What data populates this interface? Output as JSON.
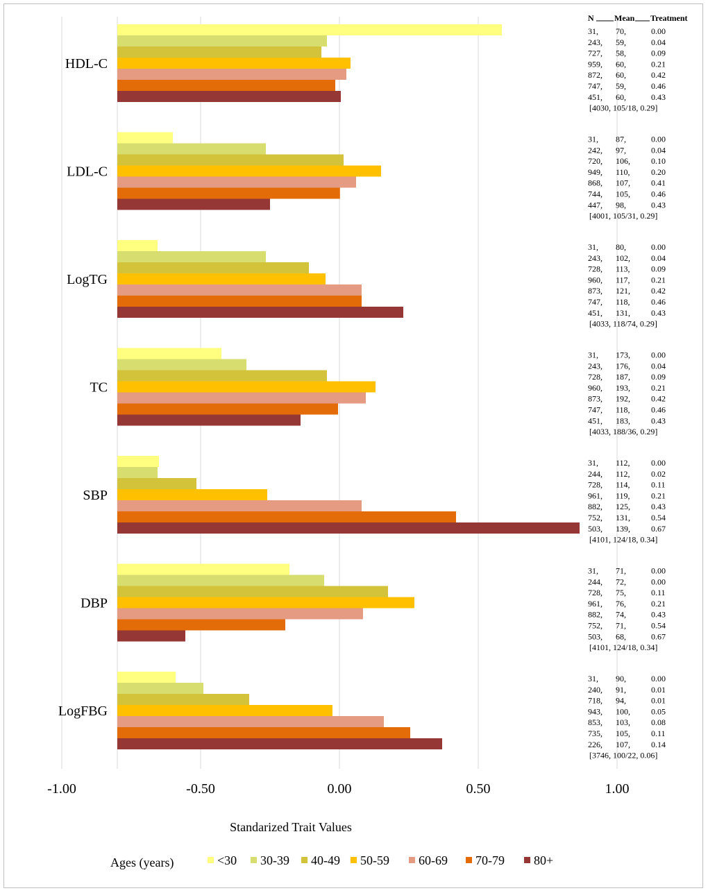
{
  "chart_data": {
    "type": "bar",
    "orientation": "horizontal",
    "xlabel": "Standarized  Trait Values",
    "xlim": [
      -1.0,
      1.0
    ],
    "xticks": [
      "-1.00",
      "-0.50",
      "0.00",
      "0.50",
      "1.00"
    ],
    "xtick_values": [
      -1.0,
      -0.5,
      0.0,
      0.5,
      1.0
    ],
    "legend_title": "Ages  (years)",
    "series": [
      {
        "name": "<30",
        "color": "#FFFF80"
      },
      {
        "name": "30-39",
        "color": "#D7DD6E"
      },
      {
        "name": "40-49",
        "color": "#D3C33B"
      },
      {
        "name": "50-59",
        "color": "#FFC000"
      },
      {
        "name": "60-69",
        "color": "#E59A82"
      },
      {
        "name": "70-79",
        "color": "#E36C09"
      },
      {
        "name": "80+",
        "color": "#953735"
      }
    ],
    "categories": [
      "HDL-C",
      "LDL-C",
      "LogTG",
      "TC",
      "SBP",
      "DBP",
      "LogFBG"
    ],
    "values": [
      [
        0.585,
        -0.045,
        -0.065,
        0.04,
        0.025,
        -0.015,
        0.005
      ],
      [
        -0.6,
        -0.265,
        0.015,
        0.15,
        0.06,
        0.002,
        -0.25
      ],
      [
        -0.655,
        -0.265,
        -0.11,
        -0.05,
        0.08,
        0.08,
        0.23
      ],
      [
        -0.425,
        -0.335,
        -0.045,
        0.13,
        0.095,
        -0.005,
        -0.14
      ],
      [
        -0.65,
        -0.655,
        -0.515,
        -0.26,
        0.08,
        0.42,
        0.865
      ],
      [
        -0.18,
        -0.055,
        0.175,
        0.27,
        0.085,
        -0.195,
        -0.555
      ],
      [
        -0.59,
        -0.49,
        -0.325,
        -0.025,
        0.16,
        0.255,
        0.37
      ]
    ],
    "annotation_header": {
      "n": "N",
      "mean": "Mean",
      "treatment": "Treatment"
    },
    "annotations": [
      [
        [
          "31,",
          "70,",
          "0.00"
        ],
        [
          "243,",
          "59,",
          "0.04"
        ],
        [
          "727,",
          "58,",
          "0.09"
        ],
        [
          "959,",
          "60,",
          "0.21"
        ],
        [
          "872,",
          "60,",
          "0.42"
        ],
        [
          "747,",
          "59,",
          "0.46"
        ],
        [
          "451,",
          "60,",
          "0.43"
        ],
        "[4030,  105/18,  0.29]"
      ],
      [
        [
          "31,",
          "87,",
          "0.00"
        ],
        [
          "242,",
          "97,",
          "0.04"
        ],
        [
          "720,",
          "106,",
          "0.10"
        ],
        [
          "949,",
          "110,",
          "0.20"
        ],
        [
          "868,",
          "107,",
          "0.41"
        ],
        [
          "744,",
          "105,",
          "0.46"
        ],
        [
          "447,",
          "98,",
          "0.43"
        ],
        "[4001,  105/31,  0.29]"
      ],
      [
        [
          "31,",
          "80,",
          "0.00"
        ],
        [
          "243,",
          "102,",
          "0.04"
        ],
        [
          "728,",
          "113,",
          "0.09"
        ],
        [
          "960,",
          "117,",
          "0.21"
        ],
        [
          "873,",
          "121,",
          "0.42"
        ],
        [
          "747,",
          "118,",
          "0.46"
        ],
        [
          "451,",
          "131,",
          "0.43"
        ],
        "[4033,  118/74,  0.29]"
      ],
      [
        [
          "31,",
          "173,",
          "0.00"
        ],
        [
          "243,",
          "176,",
          "0.04"
        ],
        [
          "728,",
          "187,",
          "0.09"
        ],
        [
          "960,",
          "193,",
          "0.21"
        ],
        [
          "873,",
          "192,",
          "0.42"
        ],
        [
          "747,",
          "118,",
          "0.46"
        ],
        [
          "451,",
          "183,",
          "0.43"
        ],
        "[4033,  188/36,  0.29]"
      ],
      [
        [
          "31,",
          "112,",
          "0.00"
        ],
        [
          "244,",
          "112,",
          "0.02"
        ],
        [
          "728,",
          "114,",
          "0.11"
        ],
        [
          "961,",
          "119,",
          "0.21"
        ],
        [
          "882,",
          "125,",
          "0.43"
        ],
        [
          "752,",
          "131,",
          "0.54"
        ],
        [
          "503,",
          "139,",
          "0.67"
        ],
        "[4101,  124/18,  0.34]"
      ],
      [
        [
          "31,",
          "71,",
          "0.00"
        ],
        [
          "244,",
          "72,",
          "0.00"
        ],
        [
          "728,",
          "75,",
          "0.11"
        ],
        [
          "961,",
          "76,",
          "0.21"
        ],
        [
          "882,",
          "74,",
          "0.43"
        ],
        [
          "752,",
          "71,",
          "0.54"
        ],
        [
          "503,",
          "68,",
          "0.67"
        ],
        "[4101,  124/18,  0.34]"
      ],
      [
        [
          "31,",
          "90,",
          "0.00"
        ],
        [
          "240,",
          "91,",
          "0.01"
        ],
        [
          "718,",
          "94,",
          "0.01"
        ],
        [
          "943,",
          "100,",
          "0.05"
        ],
        [
          "853,",
          "103,",
          "0.08"
        ],
        [
          "735,",
          "105,",
          "0.11"
        ],
        [
          "226,",
          "107,",
          "0.14"
        ],
        "[3746,  100/22,  0.06]"
      ]
    ]
  }
}
